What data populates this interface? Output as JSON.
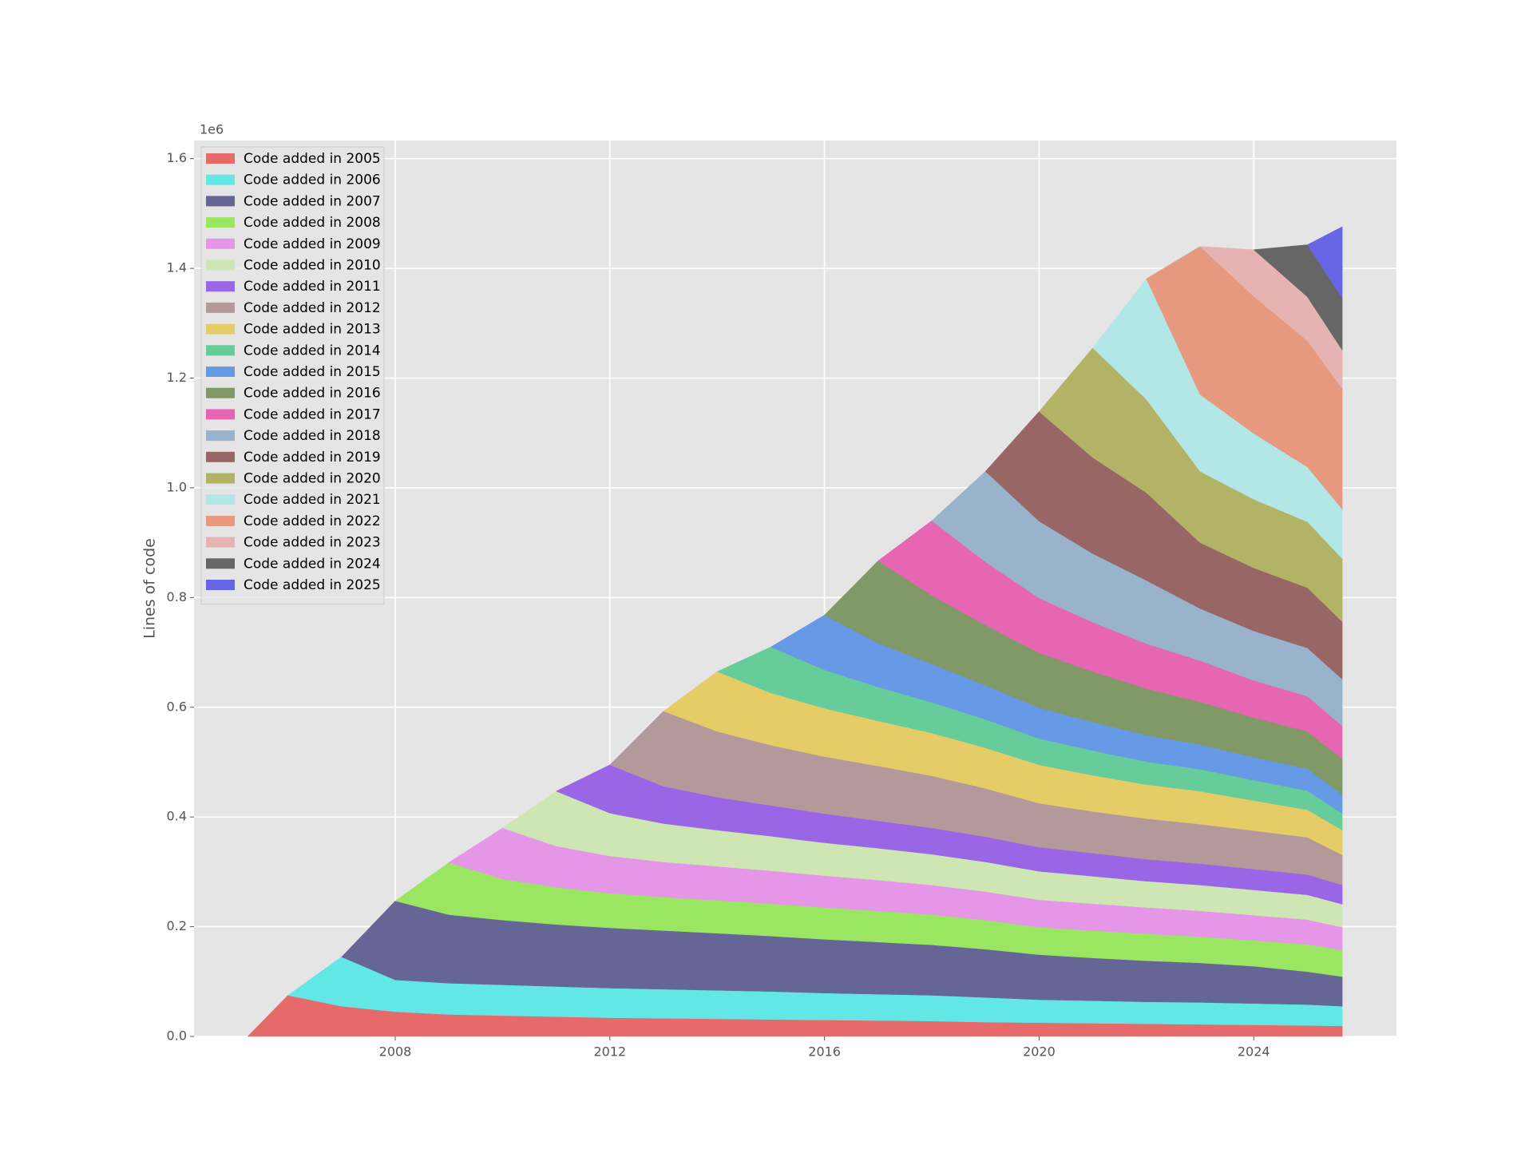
{
  "chart_data": {
    "type": "stackplot",
    "ylabel": "Lines of code",
    "y_offset_label": "1e6",
    "grid": true,
    "legend": "upper left",
    "xlim": [
      2004.25,
      2026.66
    ],
    "xticks": [
      2008,
      2012,
      2016,
      2020,
      2024
    ],
    "ylim": [
      0,
      1633000
    ],
    "yticks": [
      {
        "value": 0,
        "label": "0.0"
      },
      {
        "value": 200000,
        "label": "0.2"
      },
      {
        "value": 400000,
        "label": "0.4"
      },
      {
        "value": 600000,
        "label": "0.6"
      },
      {
        "value": 800000,
        "label": "0.8"
      },
      {
        "value": 1000000,
        "label": "1.0"
      },
      {
        "value": 1200000,
        "label": "1.2"
      },
      {
        "value": 1400000,
        "label": "1.4"
      },
      {
        "value": 1600000,
        "label": "1.6"
      }
    ],
    "x": [
      2005.25,
      2006,
      2007,
      2008,
      2009,
      2010,
      2011,
      2012,
      2013,
      2014,
      2015,
      2016,
      2017,
      2018,
      2019,
      2020,
      2021,
      2022,
      2023,
      2024,
      2025,
      2025.65
    ],
    "series": [
      {
        "name": "Code added in 2005",
        "color": "#e66a6a",
        "values": [
          0,
          75000,
          55000,
          45000,
          40000,
          38000,
          36000,
          34000,
          33000,
          32000,
          31000,
          30000,
          29000,
          28000,
          26000,
          25000,
          24000,
          23000,
          22000,
          21000,
          20000,
          19000
        ]
      },
      {
        "name": "Code added in 2006",
        "color": "#63e6e6",
        "values": [
          null,
          0,
          90000,
          58000,
          57000,
          56000,
          55000,
          54000,
          53000,
          52000,
          51000,
          49000,
          48000,
          47000,
          45000,
          42000,
          41000,
          40000,
          40000,
          39000,
          38000,
          36000
        ]
      },
      {
        "name": "Code added in 2007",
        "color": "#666696",
        "values": [
          null,
          null,
          0,
          144000,
          125000,
          118000,
          113000,
          110000,
          107000,
          104000,
          101000,
          98000,
          95000,
          92000,
          88000,
          82000,
          78000,
          75000,
          72000,
          68000,
          60000,
          54000
        ]
      },
      {
        "name": "Code added in 2008",
        "color": "#9ae663",
        "values": [
          null,
          null,
          null,
          0,
          95000,
          75000,
          68000,
          63000,
          61000,
          60000,
          59000,
          58000,
          57000,
          55000,
          53000,
          50000,
          50000,
          49000,
          48000,
          47000,
          50000,
          48000
        ]
      },
      {
        "name": "Code added in 2009",
        "color": "#e696e6",
        "values": [
          null,
          null,
          null,
          null,
          0,
          93000,
          75000,
          68000,
          64000,
          62000,
          60000,
          58000,
          56000,
          54000,
          52000,
          50000,
          49000,
          48000,
          47000,
          46000,
          45000,
          42000
        ]
      },
      {
        "name": "Code added in 2010",
        "color": "#cde6b3",
        "values": [
          null,
          null,
          null,
          null,
          null,
          0,
          100000,
          78000,
          70000,
          66000,
          63000,
          60000,
          58000,
          56000,
          54000,
          52000,
          50000,
          48000,
          47000,
          46000,
          45000,
          42000
        ]
      },
      {
        "name": "Code added in 2011",
        "color": "#9966e6",
        "values": [
          null,
          null,
          null,
          null,
          null,
          null,
          0,
          88000,
          68000,
          60000,
          56000,
          53000,
          50000,
          48000,
          46000,
          44000,
          42000,
          40000,
          39000,
          38000,
          37000,
          35000
        ]
      },
      {
        "name": "Code added in 2012",
        "color": "#b39999",
        "values": [
          null,
          null,
          null,
          null,
          null,
          null,
          null,
          0,
          137000,
          120000,
          110000,
          104000,
          100000,
          95000,
          88000,
          80000,
          76000,
          74000,
          72000,
          70000,
          68000,
          55000
        ]
      },
      {
        "name": "Code added in 2013",
        "color": "#e6cc66",
        "values": [
          null,
          null,
          null,
          null,
          null,
          null,
          null,
          null,
          0,
          109000,
          95000,
          88000,
          82000,
          78000,
          74000,
          70000,
          66000,
          62000,
          60000,
          55000,
          50000,
          45000
        ]
      },
      {
        "name": "Code added in 2014",
        "color": "#66cc99",
        "values": [
          null,
          null,
          null,
          null,
          null,
          null,
          null,
          null,
          null,
          0,
          84000,
          70000,
          62000,
          56000,
          52000,
          48000,
          45000,
          42000,
          40000,
          37000,
          35000,
          30000
        ]
      },
      {
        "name": "Code added in 2015",
        "color": "#6699e6",
        "values": [
          null,
          null,
          null,
          null,
          null,
          null,
          null,
          null,
          null,
          null,
          0,
          100000,
          80000,
          70000,
          62000,
          56000,
          52000,
          48000,
          45000,
          42000,
          40000,
          35000
        ]
      },
      {
        "name": "Code added in 2016",
        "color": "#809966",
        "values": [
          null,
          null,
          null,
          null,
          null,
          null,
          null,
          null,
          null,
          null,
          null,
          0,
          150000,
          125000,
          110000,
          100000,
          92000,
          85000,
          78000,
          72000,
          68000,
          65000
        ]
      },
      {
        "name": "Code added in 2017",
        "color": "#e666b3",
        "values": [
          null,
          null,
          null,
          null,
          null,
          null,
          null,
          null,
          null,
          null,
          null,
          null,
          0,
          136000,
          115000,
          100000,
          90000,
          82000,
          75000,
          68000,
          64000,
          60000
        ]
      },
      {
        "name": "Code added in 2018",
        "color": "#99b3cc",
        "values": [
          null,
          null,
          null,
          null,
          null,
          null,
          null,
          null,
          null,
          null,
          null,
          null,
          null,
          0,
          165000,
          140000,
          125000,
          115000,
          95000,
          90000,
          88000,
          85000
        ]
      },
      {
        "name": "Code added in 2019",
        "color": "#996666",
        "values": [
          null,
          null,
          null,
          null,
          null,
          null,
          null,
          null,
          null,
          null,
          null,
          null,
          null,
          null,
          0,
          200000,
          175000,
          160000,
          120000,
          115000,
          110000,
          105000
        ]
      },
      {
        "name": "Code added in 2020",
        "color": "#b3b366",
        "values": [
          null,
          null,
          null,
          null,
          null,
          null,
          null,
          null,
          null,
          null,
          null,
          null,
          null,
          null,
          null,
          0,
          200000,
          170000,
          130000,
          125000,
          120000,
          115000
        ]
      },
      {
        "name": "Code added in 2021",
        "color": "#b3e6e6",
        "values": [
          null,
          null,
          null,
          null,
          null,
          null,
          null,
          null,
          null,
          null,
          null,
          null,
          null,
          null,
          null,
          null,
          0,
          220000,
          140000,
          120000,
          100000,
          90000
        ]
      },
      {
        "name": "Code added in 2022",
        "color": "#e6997f",
        "values": [
          null,
          null,
          null,
          null,
          null,
          null,
          null,
          null,
          null,
          null,
          null,
          null,
          null,
          null,
          null,
          null,
          null,
          0,
          270000,
          250000,
          230000,
          220000
        ]
      },
      {
        "name": "Code added in 2023",
        "color": "#e6b3b3",
        "values": [
          null,
          null,
          null,
          null,
          null,
          null,
          null,
          null,
          null,
          null,
          null,
          null,
          null,
          null,
          null,
          null,
          null,
          null,
          0,
          85000,
          80000,
          70000
        ]
      },
      {
        "name": "Code added in 2024",
        "color": "#666666",
        "values": [
          null,
          null,
          null,
          null,
          null,
          null,
          null,
          null,
          null,
          null,
          null,
          null,
          null,
          null,
          null,
          null,
          null,
          null,
          null,
          0,
          95000,
          95000
        ]
      },
      {
        "name": "Code added in 2025",
        "color": "#6666e6",
        "values": [
          null,
          null,
          null,
          null,
          null,
          null,
          null,
          null,
          null,
          null,
          null,
          null,
          null,
          null,
          null,
          null,
          null,
          null,
          null,
          null,
          0,
          130000
        ]
      }
    ]
  }
}
